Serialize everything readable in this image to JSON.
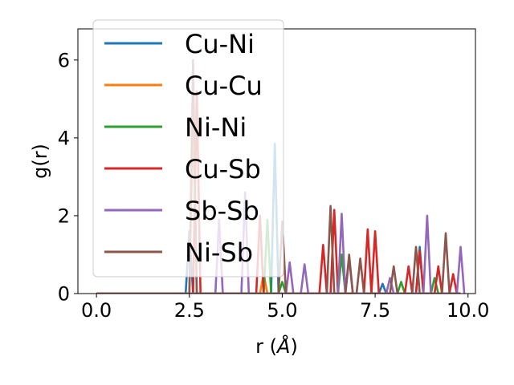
{
  "chart_data": {
    "type": "line",
    "title": "",
    "xlabel": "r (",
    "xlabel_unit": "Å",
    "xlabel_close": ")",
    "ylabel": "g(r)",
    "xlim": [
      -0.5,
      10.2
    ],
    "ylim": [
      0,
      6.8
    ],
    "xticks": [
      0.0,
      2.5,
      5.0,
      7.5,
      10.0
    ],
    "xtick_labels": [
      "0.0",
      "2.5",
      "5.0",
      "7.5",
      "10.0"
    ],
    "yticks": [
      0,
      2,
      4,
      6
    ],
    "ytick_labels": [
      "0",
      "2",
      "4",
      "6"
    ],
    "legend_position": "upper-left",
    "series": [
      {
        "name": "Cu-Ni",
        "color": "#1f77b4",
        "points": [
          [
            0,
            0
          ],
          [
            2.4,
            0
          ],
          [
            2.5,
            1.6
          ],
          [
            2.6,
            0
          ],
          [
            4.7,
            0
          ],
          [
            4.8,
            3.85
          ],
          [
            4.9,
            0
          ],
          [
            7.6,
            0
          ],
          [
            7.7,
            0.25
          ],
          [
            7.8,
            0
          ],
          [
            8.6,
            0
          ],
          [
            8.7,
            1.2
          ],
          [
            8.8,
            0
          ],
          [
            9.8,
            0
          ]
        ]
      },
      {
        "name": "Cu-Cu",
        "color": "#ff7f0e",
        "points": [
          [
            0,
            0
          ],
          [
            2.5,
            0
          ],
          [
            2.6,
            4.5
          ],
          [
            2.7,
            0
          ],
          [
            4.4,
            0
          ],
          [
            4.5,
            0.5
          ],
          [
            4.6,
            0
          ],
          [
            9.8,
            0
          ]
        ]
      },
      {
        "name": "Ni-Ni",
        "color": "#2ca02c",
        "points": [
          [
            0,
            0
          ],
          [
            4.5,
            0
          ],
          [
            4.6,
            1.9
          ],
          [
            4.7,
            0
          ],
          [
            4.9,
            0
          ],
          [
            5.0,
            0.3
          ],
          [
            5.1,
            0
          ],
          [
            6.5,
            0
          ],
          [
            6.6,
            1.0
          ],
          [
            6.7,
            0
          ],
          [
            8.1,
            0
          ],
          [
            8.2,
            0.3
          ],
          [
            8.3,
            0
          ],
          [
            9.0,
            0
          ],
          [
            9.1,
            0.4
          ],
          [
            9.2,
            0
          ],
          [
            9.8,
            0
          ]
        ]
      },
      {
        "name": "Cu-Sb",
        "color": "#d62728",
        "points": [
          [
            0,
            0
          ],
          [
            2.6,
            0
          ],
          [
            2.7,
            5.2
          ],
          [
            2.8,
            0
          ],
          [
            4.3,
            0
          ],
          [
            4.4,
            2.0
          ],
          [
            4.5,
            0
          ],
          [
            6.0,
            0
          ],
          [
            6.1,
            1.25
          ],
          [
            6.2,
            0
          ],
          [
            6.3,
            0
          ],
          [
            6.4,
            2.15
          ],
          [
            6.5,
            0
          ],
          [
            7.2,
            0
          ],
          [
            7.3,
            1.65
          ],
          [
            7.4,
            0
          ],
          [
            7.5,
            1.6
          ],
          [
            7.6,
            0
          ],
          [
            8.3,
            0
          ],
          [
            8.4,
            0.7
          ],
          [
            8.5,
            0
          ],
          [
            8.6,
            0
          ],
          [
            8.7,
            1.1
          ],
          [
            8.8,
            0
          ],
          [
            9.1,
            0
          ],
          [
            9.2,
            0.7
          ],
          [
            9.3,
            0
          ],
          [
            9.5,
            0
          ],
          [
            9.6,
            0.5
          ],
          [
            9.7,
            0
          ],
          [
            9.8,
            0
          ]
        ]
      },
      {
        "name": "Sb-Sb",
        "color": "#9467bd",
        "points": [
          [
            0,
            0
          ],
          [
            3.2,
            0
          ],
          [
            3.3,
            1.9
          ],
          [
            3.4,
            0
          ],
          [
            3.9,
            0
          ],
          [
            4.0,
            2.6
          ],
          [
            4.1,
            0
          ],
          [
            5.1,
            0
          ],
          [
            5.2,
            0.8
          ],
          [
            5.3,
            0
          ],
          [
            5.5,
            0
          ],
          [
            5.6,
            0.75
          ],
          [
            5.7,
            0
          ],
          [
            6.5,
            0
          ],
          [
            6.6,
            2.05
          ],
          [
            6.7,
            0
          ],
          [
            6.8,
            0.9
          ],
          [
            6.9,
            0
          ],
          [
            7.8,
            0
          ],
          [
            7.9,
            0.4
          ],
          [
            8.0,
            0
          ],
          [
            8.8,
            0
          ],
          [
            8.9,
            2.0
          ],
          [
            9.0,
            0
          ],
          [
            9.7,
            0
          ],
          [
            9.8,
            1.2
          ],
          [
            9.9,
            0
          ]
        ]
      },
      {
        "name": "Ni-Sb",
        "color": "#8c564b",
        "points": [
          [
            0,
            0
          ],
          [
            2.5,
            0
          ],
          [
            2.6,
            6.0
          ],
          [
            2.7,
            0
          ],
          [
            4.9,
            0
          ],
          [
            5.0,
            1.85
          ],
          [
            5.1,
            0
          ],
          [
            6.2,
            0
          ],
          [
            6.3,
            2.25
          ],
          [
            6.4,
            0
          ],
          [
            6.7,
            0
          ],
          [
            6.8,
            1.0
          ],
          [
            6.9,
            0
          ],
          [
            7.0,
            0
          ],
          [
            7.1,
            0.9
          ],
          [
            7.2,
            0
          ],
          [
            7.9,
            0
          ],
          [
            8.0,
            0.7
          ],
          [
            8.1,
            0
          ],
          [
            8.5,
            0
          ],
          [
            8.6,
            1.2
          ],
          [
            8.7,
            0
          ],
          [
            9.3,
            0
          ],
          [
            9.4,
            1.55
          ],
          [
            9.5,
            0
          ],
          [
            9.8,
            0
          ]
        ]
      }
    ]
  }
}
